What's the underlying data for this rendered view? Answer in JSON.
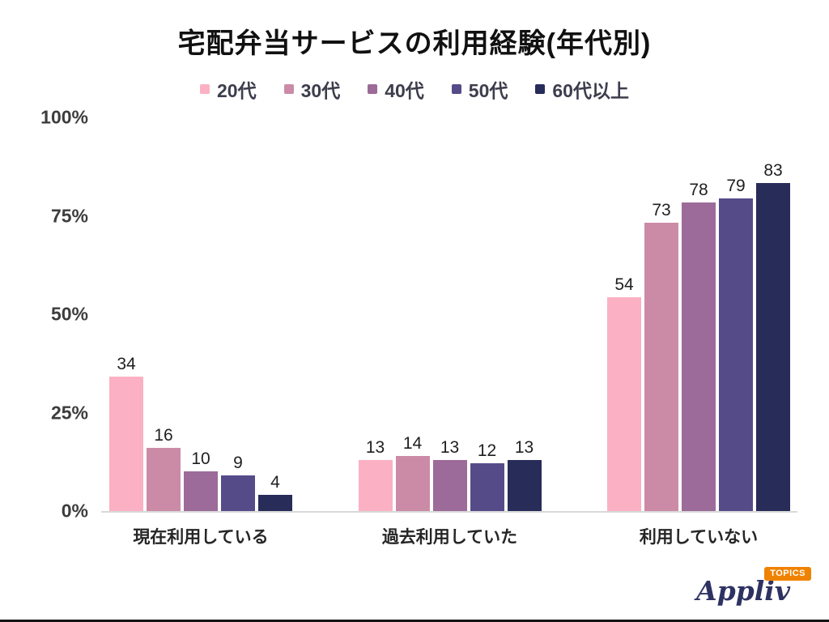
{
  "title": "宅配弁当サービスの利用経験(年代別)",
  "chart_data": {
    "type": "bar",
    "title": "宅配弁当サービスの利用経験(年代別)",
    "categories": [
      "現在利用している",
      "過去利用していた",
      "利用していない"
    ],
    "series": [
      {
        "name": "20代",
        "color": "#fbb1c3",
        "values": [
          34,
          13,
          54
        ]
      },
      {
        "name": "30代",
        "color": "#cb8ba7",
        "values": [
          16,
          14,
          73
        ]
      },
      {
        "name": "40代",
        "color": "#9c6b99",
        "values": [
          10,
          13,
          78
        ]
      },
      {
        "name": "50代",
        "color": "#564b89",
        "values": [
          9,
          12,
          79
        ]
      },
      {
        "name": "60代以上",
        "color": "#272c59",
        "values": [
          4,
          13,
          83
        ]
      }
    ],
    "xlabel": "",
    "ylabel": "",
    "ylim": [
      0,
      100
    ],
    "yticks": [
      {
        "value": 0,
        "label": "0%"
      },
      {
        "value": 25,
        "label": "25%"
      },
      {
        "value": 50,
        "label": "50%"
      },
      {
        "value": 75,
        "label": "75%"
      },
      {
        "value": 100,
        "label": "100%"
      }
    ],
    "grid": false,
    "legend_position": "top",
    "value_labels": true
  },
  "footer": {
    "brand": "Appliv",
    "badge": "TOPICS",
    "brand_color": "#2e3262",
    "badge_color": "#ef8200"
  }
}
